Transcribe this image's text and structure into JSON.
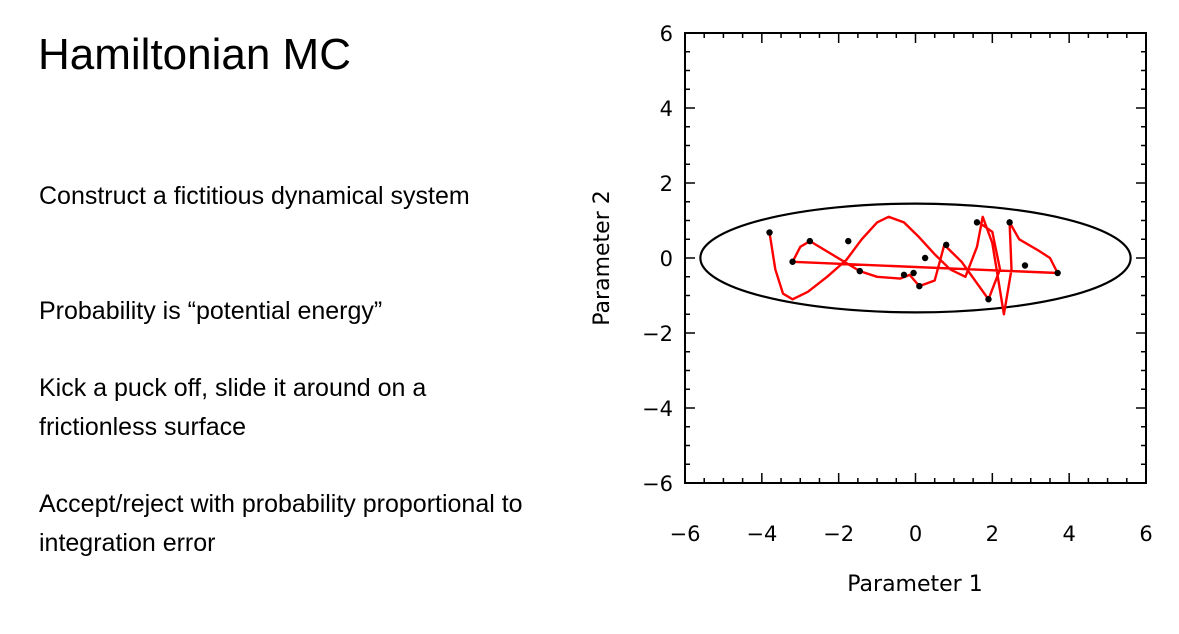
{
  "slide": {
    "title": "Hamiltonian MC",
    "bullets": [
      "Construct a fictitious dynamical system",
      "Probability is “potential energy”",
      "Kick a puck off, slide it around on a frictionless surface",
      "Accept/reject with probability proportional to integration error"
    ]
  },
  "chart_data": {
    "type": "scatter",
    "xlabel": "Parameter 1",
    "ylabel": "Parameter 2",
    "xlim": [
      -6,
      6
    ],
    "ylim": [
      -6,
      6
    ],
    "xticks": [
      "−6",
      "−4",
      "−2",
      "0",
      "2",
      "4",
      "6"
    ],
    "yticks": [
      "−6",
      "−4",
      "−2",
      "0",
      "2",
      "4",
      "6"
    ],
    "grid": false,
    "ellipse": {
      "center": [
        0,
        0
      ],
      "semi_x": 5.6,
      "semi_y": 1.45,
      "color": "#000000"
    },
    "trajectory": {
      "color": "#ff0000",
      "points": [
        [
          -3.8,
          0.68
        ],
        [
          -3.65,
          -0.3
        ],
        [
          -3.45,
          -0.95
        ],
        [
          -3.2,
          -1.1
        ],
        [
          -2.8,
          -0.9
        ],
        [
          -2.3,
          -0.5
        ],
        [
          -1.8,
          -0.05
        ],
        [
          -1.4,
          0.5
        ],
        [
          -1.0,
          0.95
        ],
        [
          -0.7,
          1.1
        ],
        [
          -0.3,
          0.95
        ],
        [
          0.1,
          0.55
        ],
        [
          0.5,
          0.1
        ],
        [
          0.9,
          -0.3
        ],
        [
          1.3,
          -0.5
        ],
        [
          1.6,
          0.3
        ],
        [
          1.75,
          1.1
        ],
        [
          2.0,
          0.4
        ],
        [
          2.3,
          -1.5
        ],
        [
          2.5,
          -0.3
        ],
        [
          2.45,
          0.95
        ],
        [
          2.7,
          0.5
        ],
        [
          3.2,
          0.2
        ],
        [
          3.5,
          0.0
        ],
        [
          3.7,
          -0.4
        ],
        [
          -3.2,
          -0.1
        ],
        [
          -3.0,
          0.3
        ],
        [
          -2.75,
          0.45
        ],
        [
          -1.45,
          -0.35
        ],
        [
          -1.0,
          -0.5
        ],
        [
          -0.4,
          -0.55
        ],
        [
          -0.15,
          -0.45
        ],
        [
          0.1,
          -0.75
        ],
        [
          0.5,
          -0.6
        ],
        [
          0.75,
          0.35
        ],
        [
          1.2,
          -0.1
        ],
        [
          1.9,
          -1.1
        ],
        [
          2.2,
          -0.3
        ],
        [
          2.0,
          0.7
        ],
        [
          1.65,
          0.95
        ]
      ]
    },
    "markers": {
      "color": "#000000",
      "points": [
        [
          -3.8,
          0.68
        ],
        [
          -3.2,
          -0.1
        ],
        [
          -2.75,
          0.45
        ],
        [
          -1.75,
          0.45
        ],
        [
          -1.45,
          -0.35
        ],
        [
          -0.3,
          -0.45
        ],
        [
          -0.05,
          -0.4
        ],
        [
          0.1,
          -0.75
        ],
        [
          0.25,
          0.0
        ],
        [
          0.8,
          0.35
        ],
        [
          1.6,
          0.95
        ],
        [
          1.9,
          -1.1
        ],
        [
          2.45,
          0.95
        ],
        [
          2.85,
          -0.2
        ],
        [
          3.7,
          -0.4
        ]
      ]
    }
  }
}
